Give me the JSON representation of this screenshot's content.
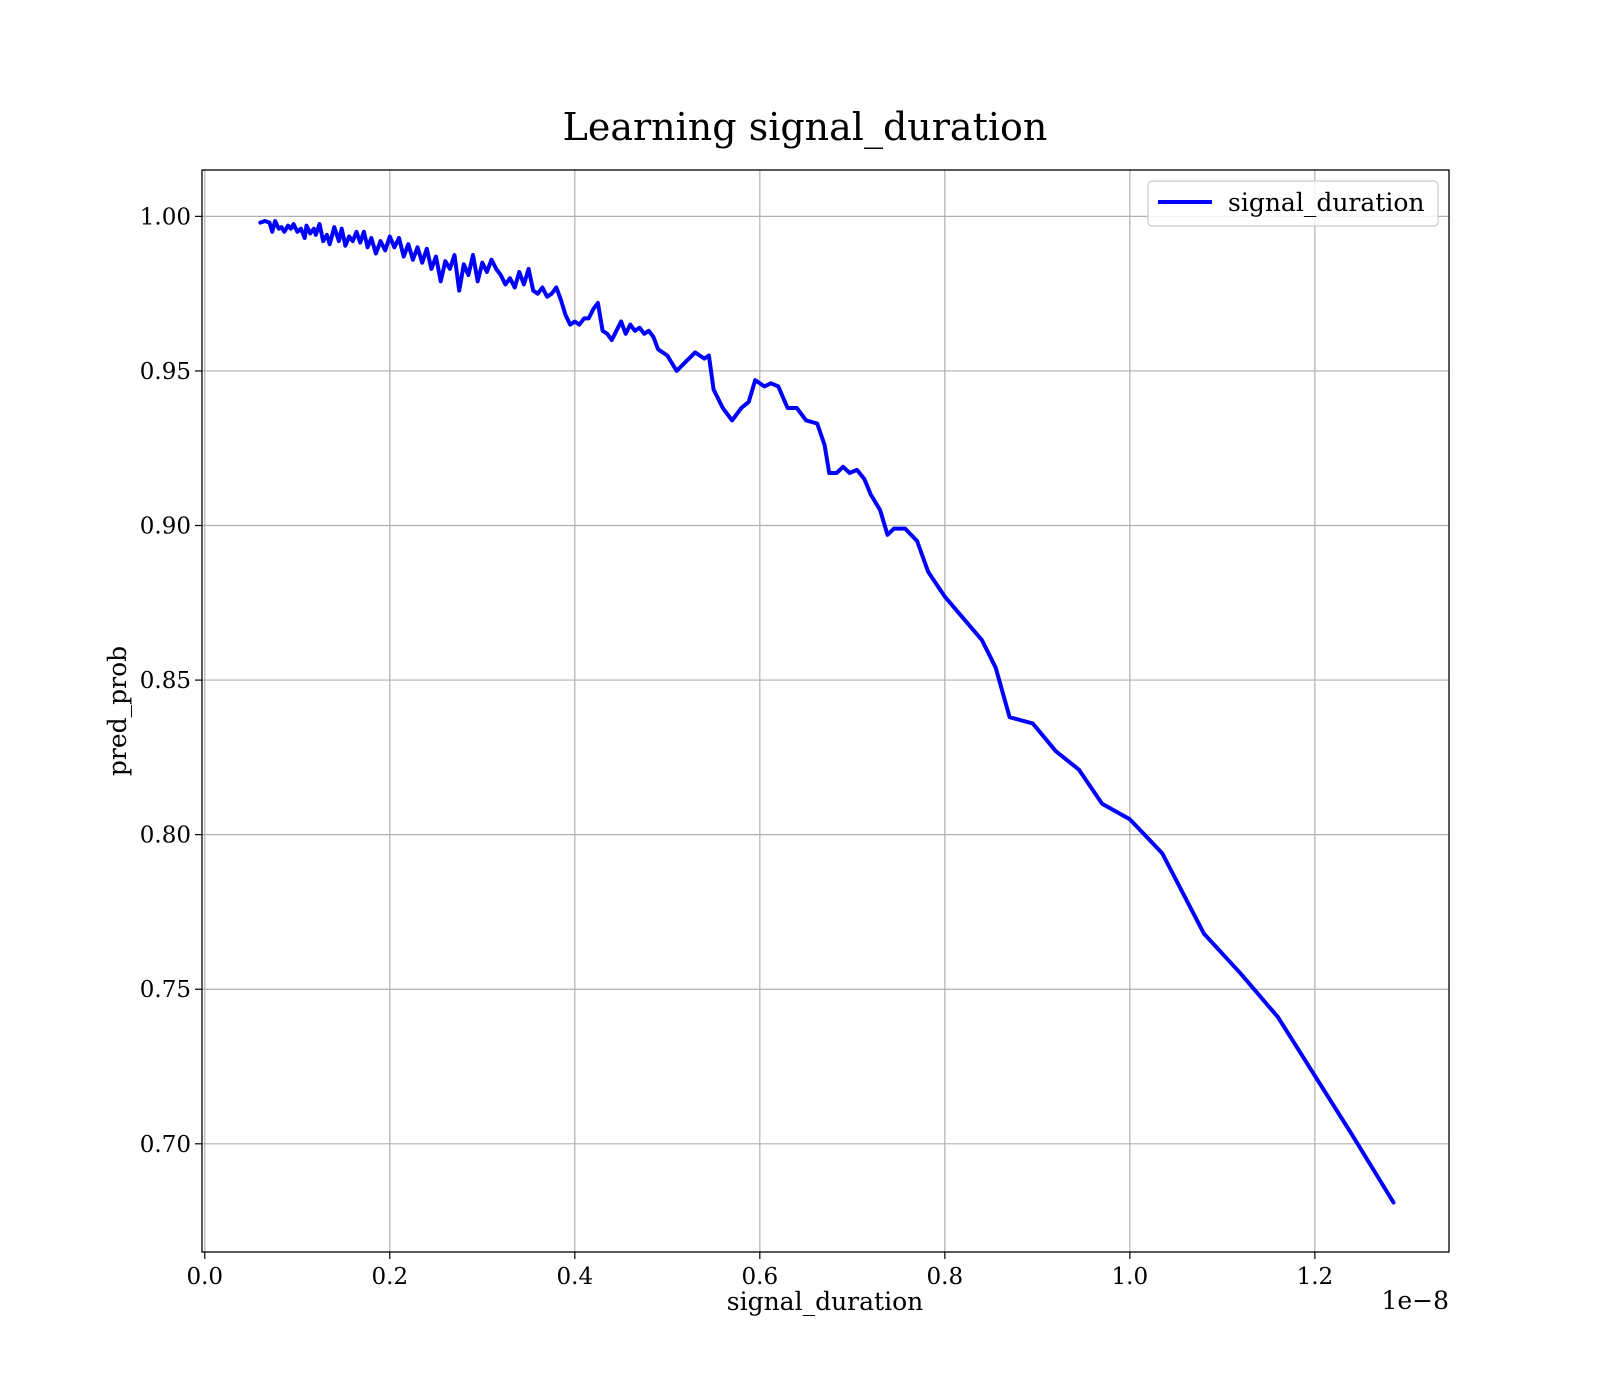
{
  "chart_data": {
    "type": "line",
    "title": "Learning signal_duration",
    "xlabel": "signal_duration",
    "ylabel": "pred_prob",
    "x_offset_label": "1e−8",
    "xlim": [
      -0.003,
      1.345
    ],
    "ylim": [
      0.665,
      1.015
    ],
    "x_ticks": [
      0.0,
      0.2,
      0.4,
      0.6,
      0.8,
      1.0,
      1.2
    ],
    "x_tick_labels": [
      "0.0",
      "0.2",
      "0.4",
      "0.6",
      "0.8",
      "1.0",
      "1.2"
    ],
    "y_ticks": [
      0.7,
      0.75,
      0.8,
      0.85,
      0.9,
      0.95,
      1.0
    ],
    "y_tick_labels": [
      "0.70",
      "0.75",
      "0.80",
      "0.85",
      "0.90",
      "0.95",
      "1.00"
    ],
    "grid": true,
    "legend": "top-right",
    "series": [
      {
        "name": "signal_duration",
        "color": "#0000ff",
        "x": [
          0.06,
          0.065,
          0.07,
          0.073,
          0.076,
          0.08,
          0.083,
          0.086,
          0.09,
          0.093,
          0.096,
          0.1,
          0.104,
          0.108,
          0.11,
          0.114,
          0.118,
          0.12,
          0.124,
          0.128,
          0.132,
          0.135,
          0.14,
          0.145,
          0.148,
          0.152,
          0.156,
          0.16,
          0.164,
          0.168,
          0.172,
          0.176,
          0.18,
          0.185,
          0.19,
          0.195,
          0.2,
          0.205,
          0.21,
          0.215,
          0.22,
          0.225,
          0.23,
          0.235,
          0.24,
          0.245,
          0.25,
          0.255,
          0.26,
          0.265,
          0.27,
          0.275,
          0.28,
          0.285,
          0.29,
          0.295,
          0.3,
          0.305,
          0.31,
          0.315,
          0.32,
          0.325,
          0.33,
          0.335,
          0.34,
          0.345,
          0.35,
          0.355,
          0.36,
          0.365,
          0.37,
          0.375,
          0.38,
          0.385,
          0.39,
          0.395,
          0.4,
          0.405,
          0.41,
          0.415,
          0.42,
          0.425,
          0.43,
          0.435,
          0.44,
          0.445,
          0.45,
          0.455,
          0.46,
          0.465,
          0.47,
          0.475,
          0.48,
          0.485,
          0.49,
          0.5,
          0.51,
          0.52,
          0.53,
          0.54,
          0.545,
          0.55,
          0.56,
          0.57,
          0.58,
          0.588,
          0.595,
          0.605,
          0.612,
          0.62,
          0.63,
          0.64,
          0.65,
          0.662,
          0.67,
          0.675,
          0.683,
          0.69,
          0.697,
          0.705,
          0.713,
          0.72,
          0.73,
          0.738,
          0.745,
          0.757,
          0.77,
          0.782,
          0.8,
          0.82,
          0.84,
          0.855,
          0.87,
          0.895,
          0.92,
          0.945,
          0.97,
          1.0,
          1.035,
          1.08,
          1.12,
          1.16,
          1.2,
          1.24,
          1.285
        ],
        "y": [
          0.998,
          0.9985,
          0.998,
          0.995,
          0.9985,
          0.996,
          0.9965,
          0.995,
          0.997,
          0.996,
          0.9975,
          0.995,
          0.996,
          0.993,
          0.997,
          0.9945,
          0.996,
          0.994,
          0.9975,
          0.992,
          0.994,
          0.991,
          0.9965,
          0.992,
          0.996,
          0.9905,
          0.9935,
          0.992,
          0.995,
          0.9915,
          0.995,
          0.99,
          0.993,
          0.988,
          0.992,
          0.989,
          0.9935,
          0.99,
          0.993,
          0.987,
          0.991,
          0.986,
          0.99,
          0.985,
          0.9895,
          0.983,
          0.987,
          0.979,
          0.9855,
          0.983,
          0.9875,
          0.976,
          0.9845,
          0.981,
          0.9875,
          0.979,
          0.985,
          0.982,
          0.986,
          0.983,
          0.981,
          0.978,
          0.98,
          0.977,
          0.982,
          0.978,
          0.983,
          0.976,
          0.975,
          0.977,
          0.974,
          0.975,
          0.977,
          0.973,
          0.968,
          0.965,
          0.966,
          0.965,
          0.967,
          0.967,
          0.97,
          0.972,
          0.963,
          0.962,
          0.96,
          0.963,
          0.966,
          0.962,
          0.965,
          0.963,
          0.964,
          0.962,
          0.963,
          0.961,
          0.957,
          0.955,
          0.95,
          0.953,
          0.956,
          0.954,
          0.955,
          0.944,
          0.938,
          0.934,
          0.938,
          0.94,
          0.947,
          0.945,
          0.946,
          0.945,
          0.938,
          0.938,
          0.934,
          0.933,
          0.926,
          0.917,
          0.917,
          0.919,
          0.917,
          0.918,
          0.915,
          0.91,
          0.905,
          0.897,
          0.899,
          0.899,
          0.895,
          0.885,
          0.877,
          0.87,
          0.863,
          0.854,
          0.838,
          0.836,
          0.827,
          0.821,
          0.81,
          0.805,
          0.794,
          0.768,
          0.755,
          0.741,
          0.722,
          0.703,
          0.681
        ]
      }
    ]
  }
}
